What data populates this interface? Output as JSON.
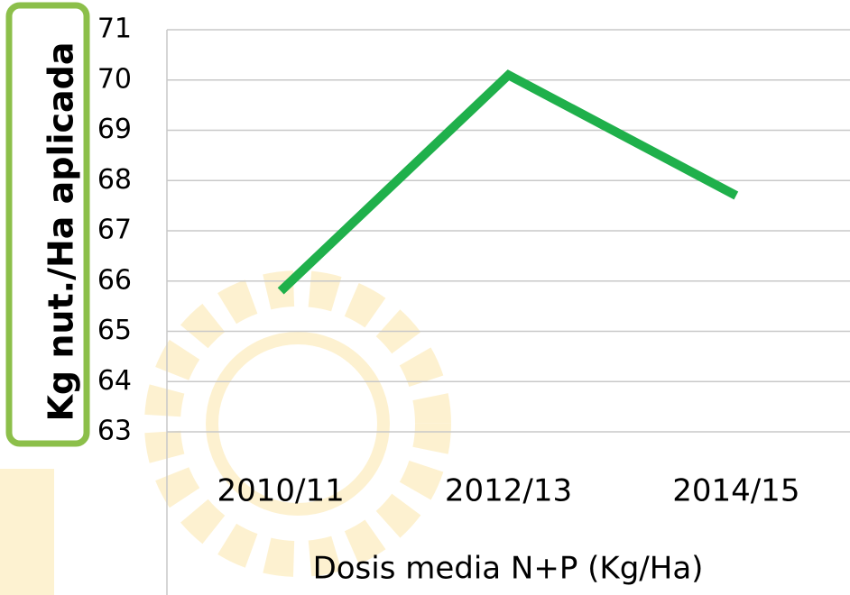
{
  "chart_data": {
    "type": "line",
    "x_label": "Dosis media N+P (Kg/Ha)",
    "y_label": "Kg nut./Ha aplicada",
    "categories": [
      "2010/11",
      "2012/13",
      "2014/15"
    ],
    "series": [
      {
        "color": "#1fb04b",
        "values": [
          65.8,
          70.1,
          67.7
        ]
      }
    ],
    "ylim": [
      63,
      71
    ],
    "yticks": [
      63,
      64,
      65,
      66,
      67,
      68,
      69,
      70,
      71
    ],
    "grid": true
  }
}
